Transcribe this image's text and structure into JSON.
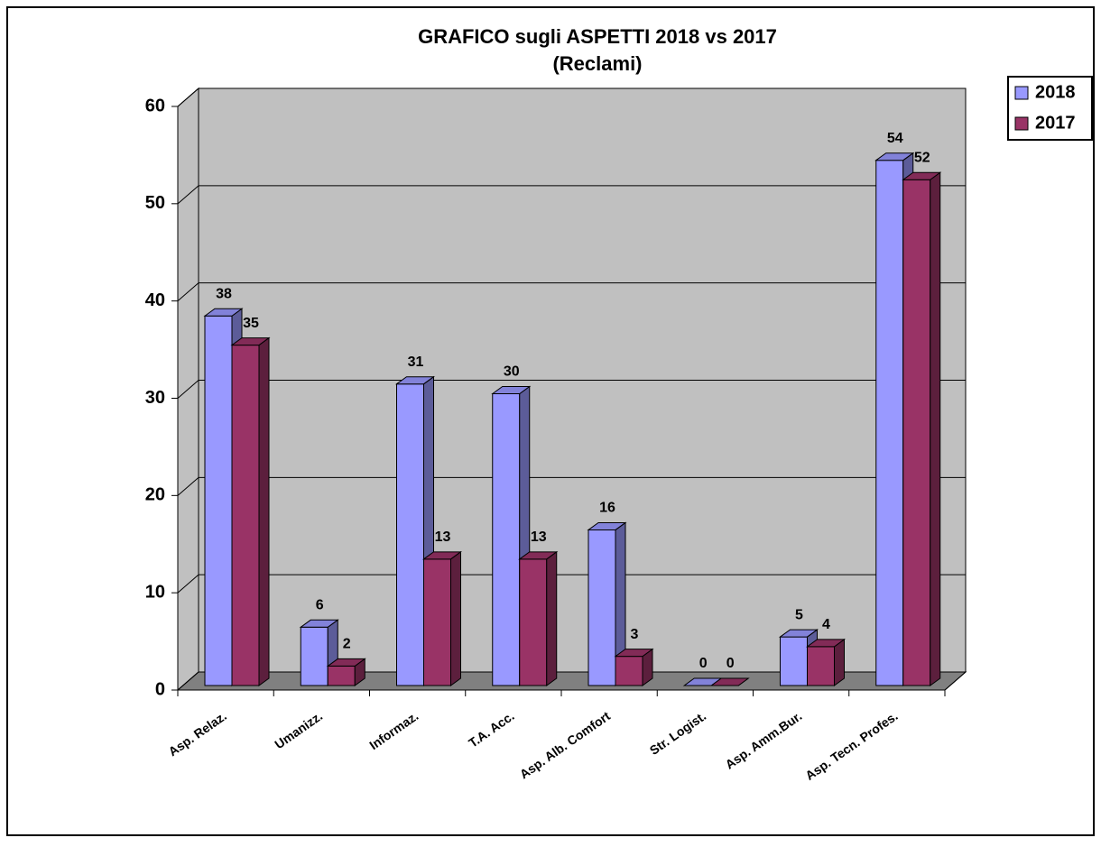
{
  "chart_data": {
    "type": "bar3d",
    "title": "GRAFICO sugli ASPETTI 2018 vs 2017",
    "subtitle": "(Reclami)",
    "categories": [
      "Asp. Relaz.",
      "Umanizz.",
      "Informaz.",
      "T.A. Acc.",
      "Asp. Alb. Comfort",
      "Str. Logist.",
      "Asp. Amm.Bur.",
      "Asp. Tecn. Profes."
    ],
    "series": [
      {
        "name": "2018",
        "color": "#9999ff",
        "values": [
          38,
          6,
          31,
          30,
          16,
          0,
          5,
          54
        ]
      },
      {
        "name": "2017",
        "color": "#993366",
        "values": [
          35,
          2,
          13,
          13,
          3,
          0,
          4,
          52
        ]
      }
    ],
    "ylim": [
      0,
      60
    ],
    "yticks": [
      0,
      10,
      20,
      30,
      40,
      50,
      60
    ],
    "grid": true,
    "legend": "right"
  }
}
